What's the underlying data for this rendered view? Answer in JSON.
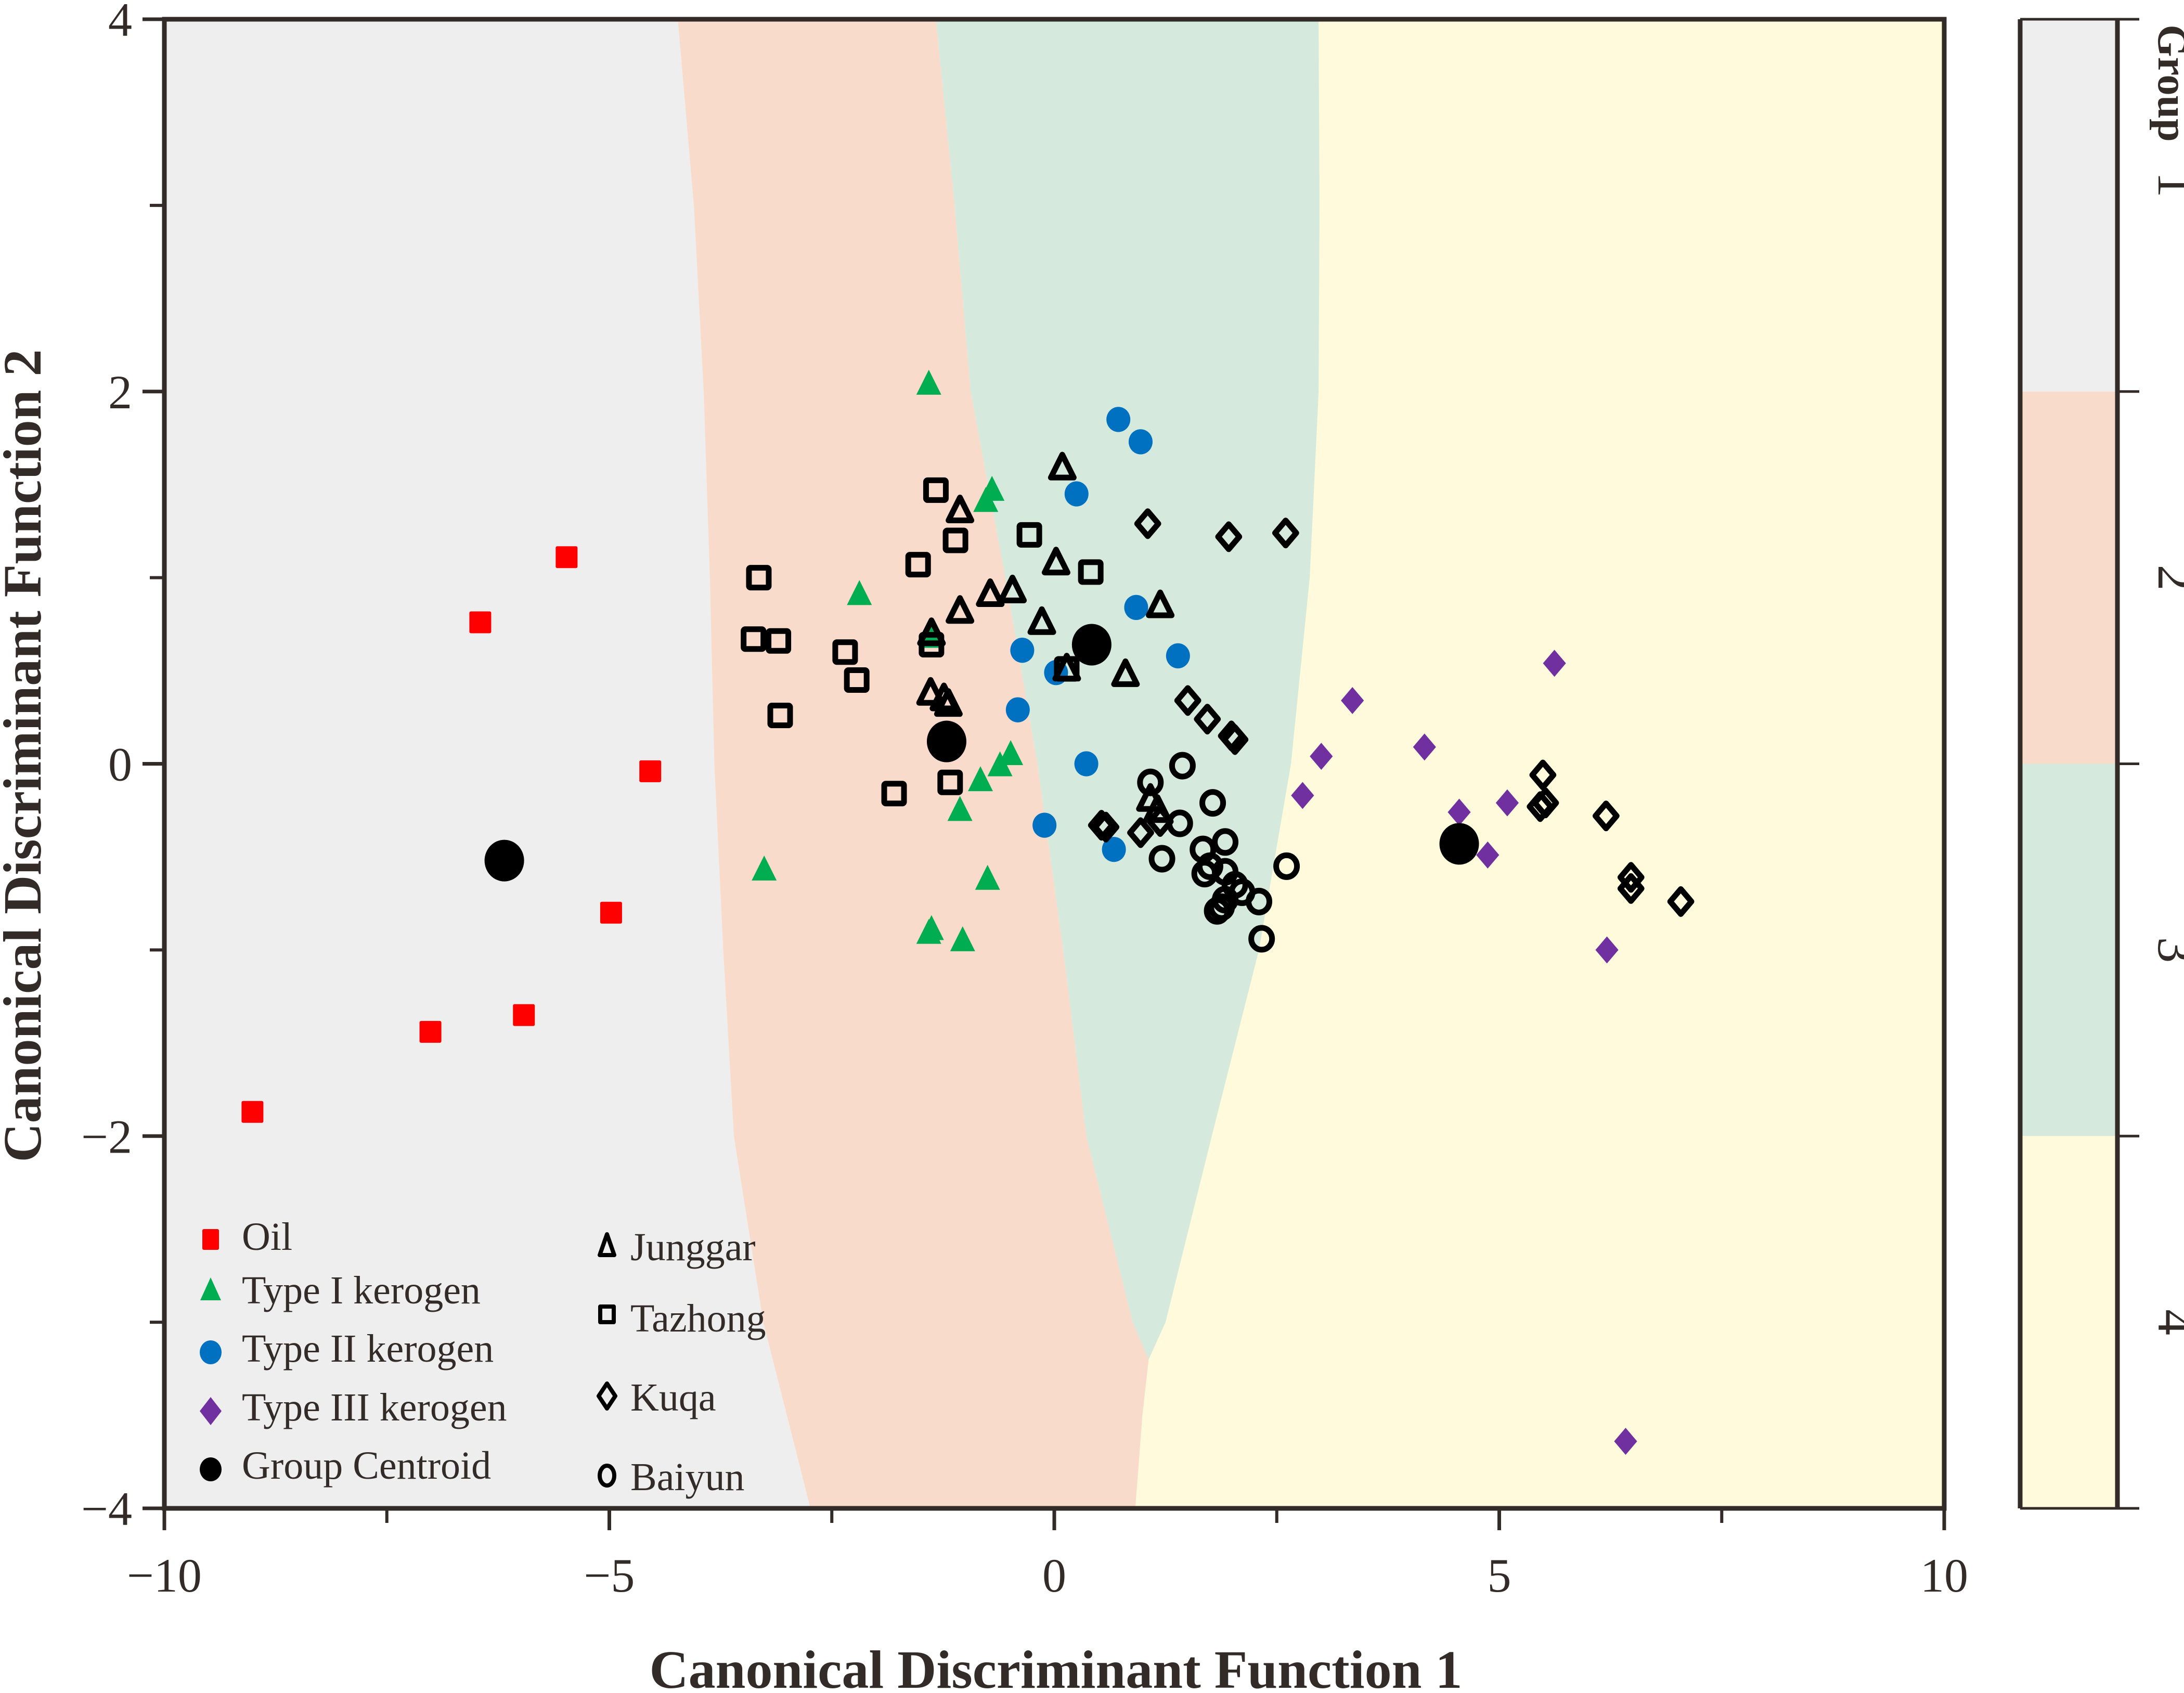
{
  "chart_data": {
    "type": "scatter",
    "title": "",
    "xlabel": "Canonical Discriminant Function 1",
    "ylabel": "Canonical Discriminant Function 2",
    "xlim": [
      -10,
      10
    ],
    "ylim": [
      -4,
      4
    ],
    "x_ticks": [
      -10,
      -5,
      0,
      5,
      10
    ],
    "x_tick_labels": [
      "−10",
      "−5",
      "0",
      "5",
      "10"
    ],
    "x_minor_ticks": [
      -7.5,
      -2.5,
      2.5,
      7.5
    ],
    "y_ticks": [
      4,
      2,
      0,
      -2,
      -4
    ],
    "y_tick_labels": [
      "4",
      "2",
      "0",
      "−2",
      "−4"
    ],
    "y_minor_ticks": [
      3,
      1,
      -1,
      -3
    ],
    "grid": false,
    "legend_placement": "bottom-left",
    "regions": {
      "colors": [
        "#eeeeee",
        "#f9dbcc",
        "#d5eadc",
        "#fffadb"
      ],
      "boundaries": [
        {
          "name": "1|2",
          "points": [
            [
              -4.23,
              4
            ],
            [
              -4.05,
              3
            ],
            [
              -3.94,
              2
            ],
            [
              -3.87,
              1
            ],
            [
              -3.82,
              0
            ],
            [
              -3.72,
              -1
            ],
            [
              -3.6,
              -2
            ],
            [
              -3.27,
              -3
            ],
            [
              -2.74,
              -4
            ]
          ]
        },
        {
          "name": "2|3",
          "points": [
            [
              -1.33,
              4
            ],
            [
              -1.12,
              3
            ],
            [
              -0.94,
              2
            ],
            [
              -0.55,
              1
            ],
            [
              -0.19,
              0
            ],
            [
              0.1,
              -1
            ],
            [
              0.36,
              -2
            ],
            [
              0.88,
              -3
            ],
            [
              1.06,
              -3.2
            ]
          ]
        },
        {
          "name": "3|4",
          "points": [
            [
              2.97,
              4
            ],
            [
              2.98,
              3
            ],
            [
              2.97,
              2
            ],
            [
              2.87,
              1
            ],
            [
              2.66,
              0
            ],
            [
              2.3,
              -1
            ],
            [
              1.77,
              -2
            ],
            [
              1.25,
              -3
            ],
            [
              1.06,
              -3.2
            ]
          ]
        },
        {
          "name": "2|4",
          "points": [
            [
              1.06,
              -3.2
            ],
            [
              0.99,
              -3.5
            ],
            [
              0.91,
              -4
            ]
          ]
        }
      ]
    },
    "series": [
      {
        "name": "Oil",
        "marker": "square",
        "filled": true,
        "color": "#ff0000",
        "points": [
          [
            -5.48,
            1.11
          ],
          [
            -6.45,
            0.76
          ],
          [
            -4.54,
            -0.04
          ],
          [
            -4.98,
            -0.8
          ],
          [
            -7.01,
            -1.44
          ],
          [
            -5.96,
            -1.35
          ],
          [
            -9.01,
            -1.87
          ]
        ]
      },
      {
        "name": "Type I kerogen",
        "marker": "triangle",
        "filled": true,
        "color": "#00ad50",
        "points": [
          [
            -1.41,
            2.04
          ],
          [
            -0.7,
            1.47
          ],
          [
            -0.77,
            1.41
          ],
          [
            -2.19,
            0.91
          ],
          [
            -1.38,
            0.68
          ],
          [
            -0.49,
            0.05
          ],
          [
            -0.61,
            -0.01
          ],
          [
            -0.83,
            -0.09
          ],
          [
            -1.06,
            -0.25
          ],
          [
            -3.26,
            -0.57
          ],
          [
            -0.75,
            -0.62
          ],
          [
            -1.41,
            -0.91
          ],
          [
            -1.38,
            -0.89
          ],
          [
            -1.03,
            -0.95
          ]
        ]
      },
      {
        "name": "Type II kerogen",
        "marker": "circle",
        "filled": true,
        "color": "#0070c0",
        "points": [
          [
            0.72,
            1.85
          ],
          [
            0.97,
            1.73
          ],
          [
            0.25,
            1.45
          ],
          [
            0.92,
            0.84
          ],
          [
            -0.36,
            0.61
          ],
          [
            1.39,
            0.58
          ],
          [
            0.02,
            0.49
          ],
          [
            -0.41,
            0.29
          ],
          [
            0.36,
            0.0
          ],
          [
            -0.11,
            -0.33
          ],
          [
            0.67,
            -0.46
          ]
        ]
      },
      {
        "name": "Type III kerogen",
        "marker": "diamond",
        "filled": true,
        "color": "#7030a0",
        "points": [
          [
            5.62,
            0.54
          ],
          [
            3.35,
            0.34
          ],
          [
            3.0,
            0.04
          ],
          [
            4.16,
            0.09
          ],
          [
            2.79,
            -0.17
          ],
          [
            5.09,
            -0.21
          ],
          [
            4.55,
            -0.26
          ],
          [
            4.54,
            -0.47
          ],
          [
            4.87,
            -0.49
          ],
          [
            6.21,
            -1.0
          ],
          [
            6.42,
            -3.64
          ]
        ]
      },
      {
        "name": "Group Centroid",
        "marker": "circle-large",
        "filled": true,
        "color": "#000000",
        "points": [
          [
            -6.18,
            -0.52
          ],
          [
            -1.21,
            0.12
          ],
          [
            0.42,
            0.64
          ],
          [
            4.55,
            -0.43
          ]
        ]
      },
      {
        "name": "Junggar",
        "marker": "triangle",
        "filled": false,
        "color": "#000000",
        "points": [
          [
            0.09,
            1.59
          ],
          [
            -1.06,
            1.36
          ],
          [
            0.02,
            1.08
          ],
          [
            -0.47,
            0.93
          ],
          [
            -0.72,
            0.91
          ],
          [
            -1.06,
            0.82
          ],
          [
            -0.14,
            0.76
          ],
          [
            1.19,
            0.85
          ],
          [
            -1.38,
            0.7
          ],
          [
            0.14,
            0.51
          ],
          [
            0.8,
            0.48
          ],
          [
            -1.39,
            0.38
          ],
          [
            -1.24,
            0.35
          ],
          [
            -1.19,
            0.32
          ],
          [
            1.08,
            -0.19
          ],
          [
            1.16,
            -0.25
          ]
        ]
      },
      {
        "name": "Tazhong",
        "marker": "square",
        "filled": false,
        "color": "#000000",
        "points": [
          [
            -1.33,
            1.47
          ],
          [
            -1.11,
            1.2
          ],
          [
            -0.28,
            1.23
          ],
          [
            -1.53,
            1.07
          ],
          [
            0.41,
            1.03
          ],
          [
            -3.32,
            1.0
          ],
          [
            -3.38,
            0.67
          ],
          [
            -3.1,
            0.66
          ],
          [
            -2.35,
            0.6
          ],
          [
            -2.22,
            0.45
          ],
          [
            -3.08,
            0.26
          ],
          [
            -1.38,
            0.64
          ],
          [
            -1.17,
            -0.1
          ],
          [
            -1.8,
            -0.16
          ],
          [
            0.14,
            0.51
          ]
        ]
      },
      {
        "name": "Kuqa",
        "marker": "diamond",
        "filled": false,
        "color": "#000000",
        "points": [
          [
            1.05,
            1.29
          ],
          [
            1.96,
            1.22
          ],
          [
            2.6,
            1.24
          ],
          [
            1.5,
            0.34
          ],
          [
            1.72,
            0.24
          ],
          [
            1.99,
            0.15
          ],
          [
            2.03,
            0.13
          ],
          [
            0.53,
            -0.33
          ],
          [
            0.58,
            -0.34
          ],
          [
            0.97,
            -0.37
          ],
          [
            1.19,
            -0.31
          ],
          [
            5.49,
            -0.06
          ],
          [
            5.46,
            -0.23
          ],
          [
            5.52,
            -0.21
          ],
          [
            6.2,
            -0.28
          ],
          [
            6.48,
            -0.61
          ],
          [
            6.48,
            -0.67
          ],
          [
            7.04,
            -0.74
          ]
        ]
      },
      {
        "name": "Baiyun",
        "marker": "circle",
        "filled": false,
        "color": "#000000",
        "points": [
          [
            1.44,
            -0.01
          ],
          [
            1.08,
            -0.1
          ],
          [
            1.78,
            -0.21
          ],
          [
            1.41,
            -0.32
          ],
          [
            1.92,
            -0.42
          ],
          [
            1.67,
            -0.46
          ],
          [
            1.21,
            -0.51
          ],
          [
            1.75,
            -0.55
          ],
          [
            1.92,
            -0.58
          ],
          [
            1.69,
            -0.59
          ],
          [
            2.03,
            -0.65
          ],
          [
            2.11,
            -0.69
          ],
          [
            1.92,
            -0.73
          ],
          [
            1.88,
            -0.77
          ],
          [
            1.83,
            -0.79
          ],
          [
            2.3,
            -0.74
          ],
          [
            2.61,
            -0.55
          ],
          [
            2.33,
            -0.94
          ]
        ]
      }
    ],
    "legend": {
      "column1": [
        "Oil",
        "Type I kerogen",
        "Type II kerogen",
        "Type III kerogen",
        "Group Centroid"
      ],
      "column2": [
        "Junggar",
        "Tazhong",
        "Kuqa",
        "Baiyun"
      ]
    },
    "colorbar": {
      "title": "Group",
      "labels": [
        "1",
        "2",
        "3",
        "4"
      ],
      "colors": [
        "#eeeeee",
        "#f9dbcc",
        "#d5eadc",
        "#fffadb"
      ]
    }
  }
}
